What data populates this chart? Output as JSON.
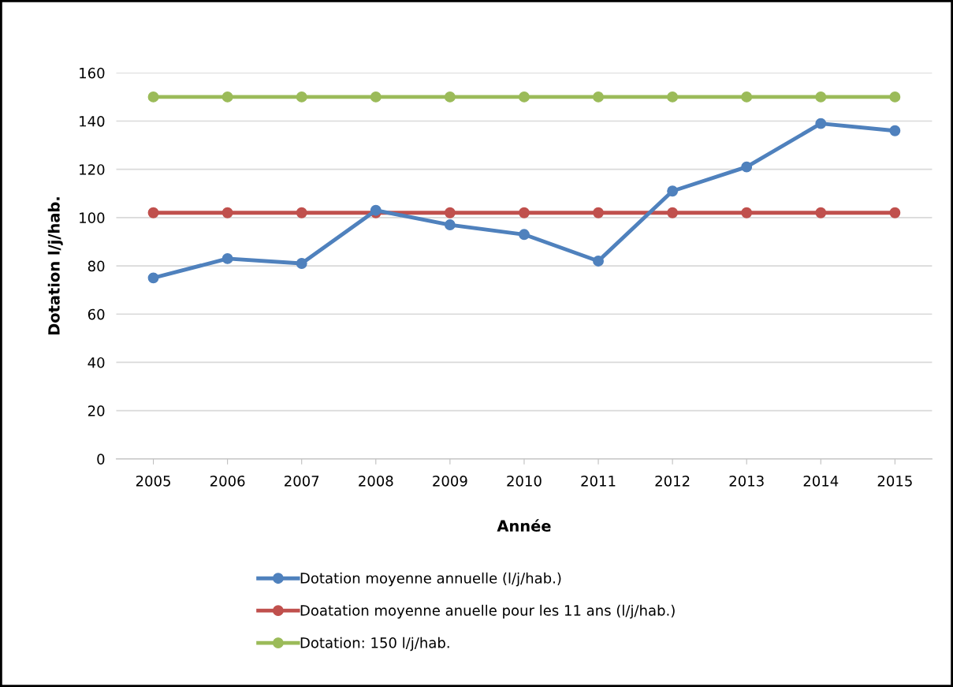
{
  "chart_data": {
    "type": "line",
    "xlabel": "Année",
    "ylabel": "Dotation l/j/hab.",
    "categories": [
      "2005",
      "2006",
      "2007",
      "2008",
      "2009",
      "2010",
      "2011",
      "2012",
      "2013",
      "2014",
      "2015"
    ],
    "series": [
      {
        "name": "Dotation moyenne annuelle (l/j/hab.)",
        "color": "#4f81bd",
        "values": [
          75,
          83,
          81,
          103,
          97,
          93,
          82,
          111,
          121,
          139,
          136
        ]
      },
      {
        "name": "Doatation moyenne anuelle pour les 11 ans (l/j/hab.)",
        "color": "#c0504d",
        "values": [
          102,
          102,
          102,
          102,
          102,
          102,
          102,
          102,
          102,
          102,
          102
        ]
      },
      {
        "name": "Dotation: 150 l/j/hab.",
        "color": "#9bbb59",
        "values": [
          150,
          150,
          150,
          150,
          150,
          150,
          150,
          150,
          150,
          150,
          150
        ]
      }
    ],
    "ylim": [
      0,
      160
    ],
    "yticks": [
      0,
      20,
      40,
      60,
      80,
      100,
      120,
      140,
      160
    ],
    "grid": "y",
    "legend": "bottom",
    "marker": "circle",
    "line_style": "solid"
  }
}
